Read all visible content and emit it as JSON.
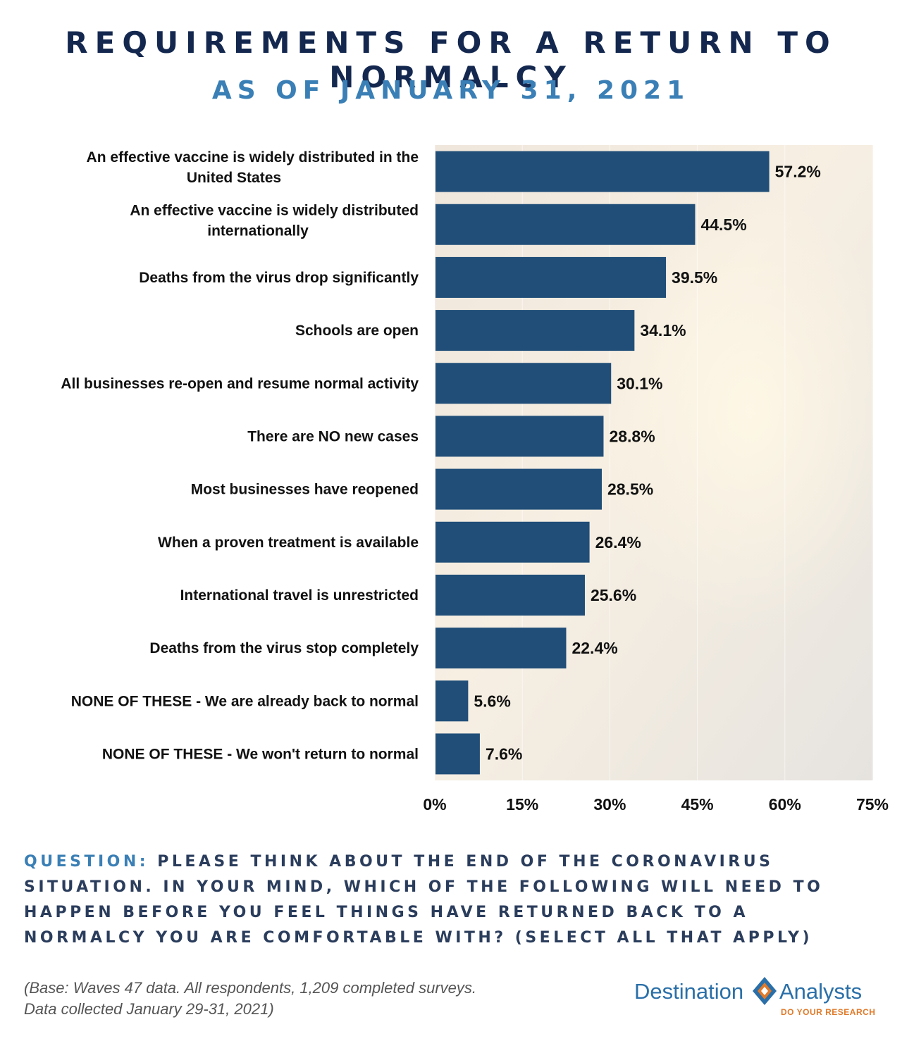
{
  "header": {
    "title": "REQUIREMENTS FOR A RETURN TO NORMALCY",
    "subtitle": "AS OF JANUARY 31, 2021"
  },
  "chart_data": {
    "type": "bar",
    "orientation": "horizontal",
    "categories": [
      [
        "An effective vaccine is widely distributed in the",
        "United States"
      ],
      [
        "An effective vaccine is widely distributed",
        "internationally"
      ],
      [
        "Deaths from the virus drop significantly"
      ],
      [
        "Schools are open"
      ],
      [
        "All businesses re-open and resume normal activity"
      ],
      [
        "There are NO new cases"
      ],
      [
        "Most businesses have reopened"
      ],
      [
        "When a proven treatment is available"
      ],
      [
        "International travel is unrestricted"
      ],
      [
        "Deaths from the virus stop completely"
      ],
      [
        "NONE OF THESE - We are already back to normal"
      ],
      [
        "NONE OF THESE - We won't return to normal"
      ]
    ],
    "values": [
      57.2,
      44.5,
      39.5,
      34.1,
      30.1,
      28.8,
      28.5,
      26.4,
      25.6,
      22.4,
      5.6,
      7.6
    ],
    "value_labels": [
      "57.2%",
      "44.5%",
      "39.5%",
      "34.1%",
      "30.1%",
      "28.8%",
      "28.5%",
      "26.4%",
      "25.6%",
      "22.4%",
      "5.6%",
      "7.6%"
    ],
    "xlim": [
      0,
      75
    ],
    "xticks": [
      0,
      15,
      30,
      45,
      60,
      75
    ],
    "xtick_labels": [
      "0%",
      "15%",
      "30%",
      "45%",
      "60%",
      "75%"
    ],
    "bar_color": "#204e78",
    "grid": true
  },
  "footer": {
    "question_prefix": "QUESTION:",
    "question_text": "PLEASE THINK ABOUT THE END OF THE CORONAVIRUS SITUATION. IN YOUR MIND, WHICH OF THE FOLLOWING WILL NEED TO HAPPEN BEFORE YOU FEEL THINGS HAVE RETURNED BACK TO A NORMALCY YOU ARE COMFORTABLE WITH? (SELECT ALL THAT APPLY)",
    "base_line1": "(Base: Waves 47 data. All respondents, 1,209 completed surveys.",
    "base_line2": "Data collected January 29-31, 2021)"
  },
  "logo": {
    "text_left": "Destination",
    "text_right": "Analysts",
    "tagline": "DO YOUR RESEARCH",
    "icon": "diamond-logo-icon",
    "primary_color": "#2a6fa8",
    "accent_color": "#e07a2a"
  }
}
